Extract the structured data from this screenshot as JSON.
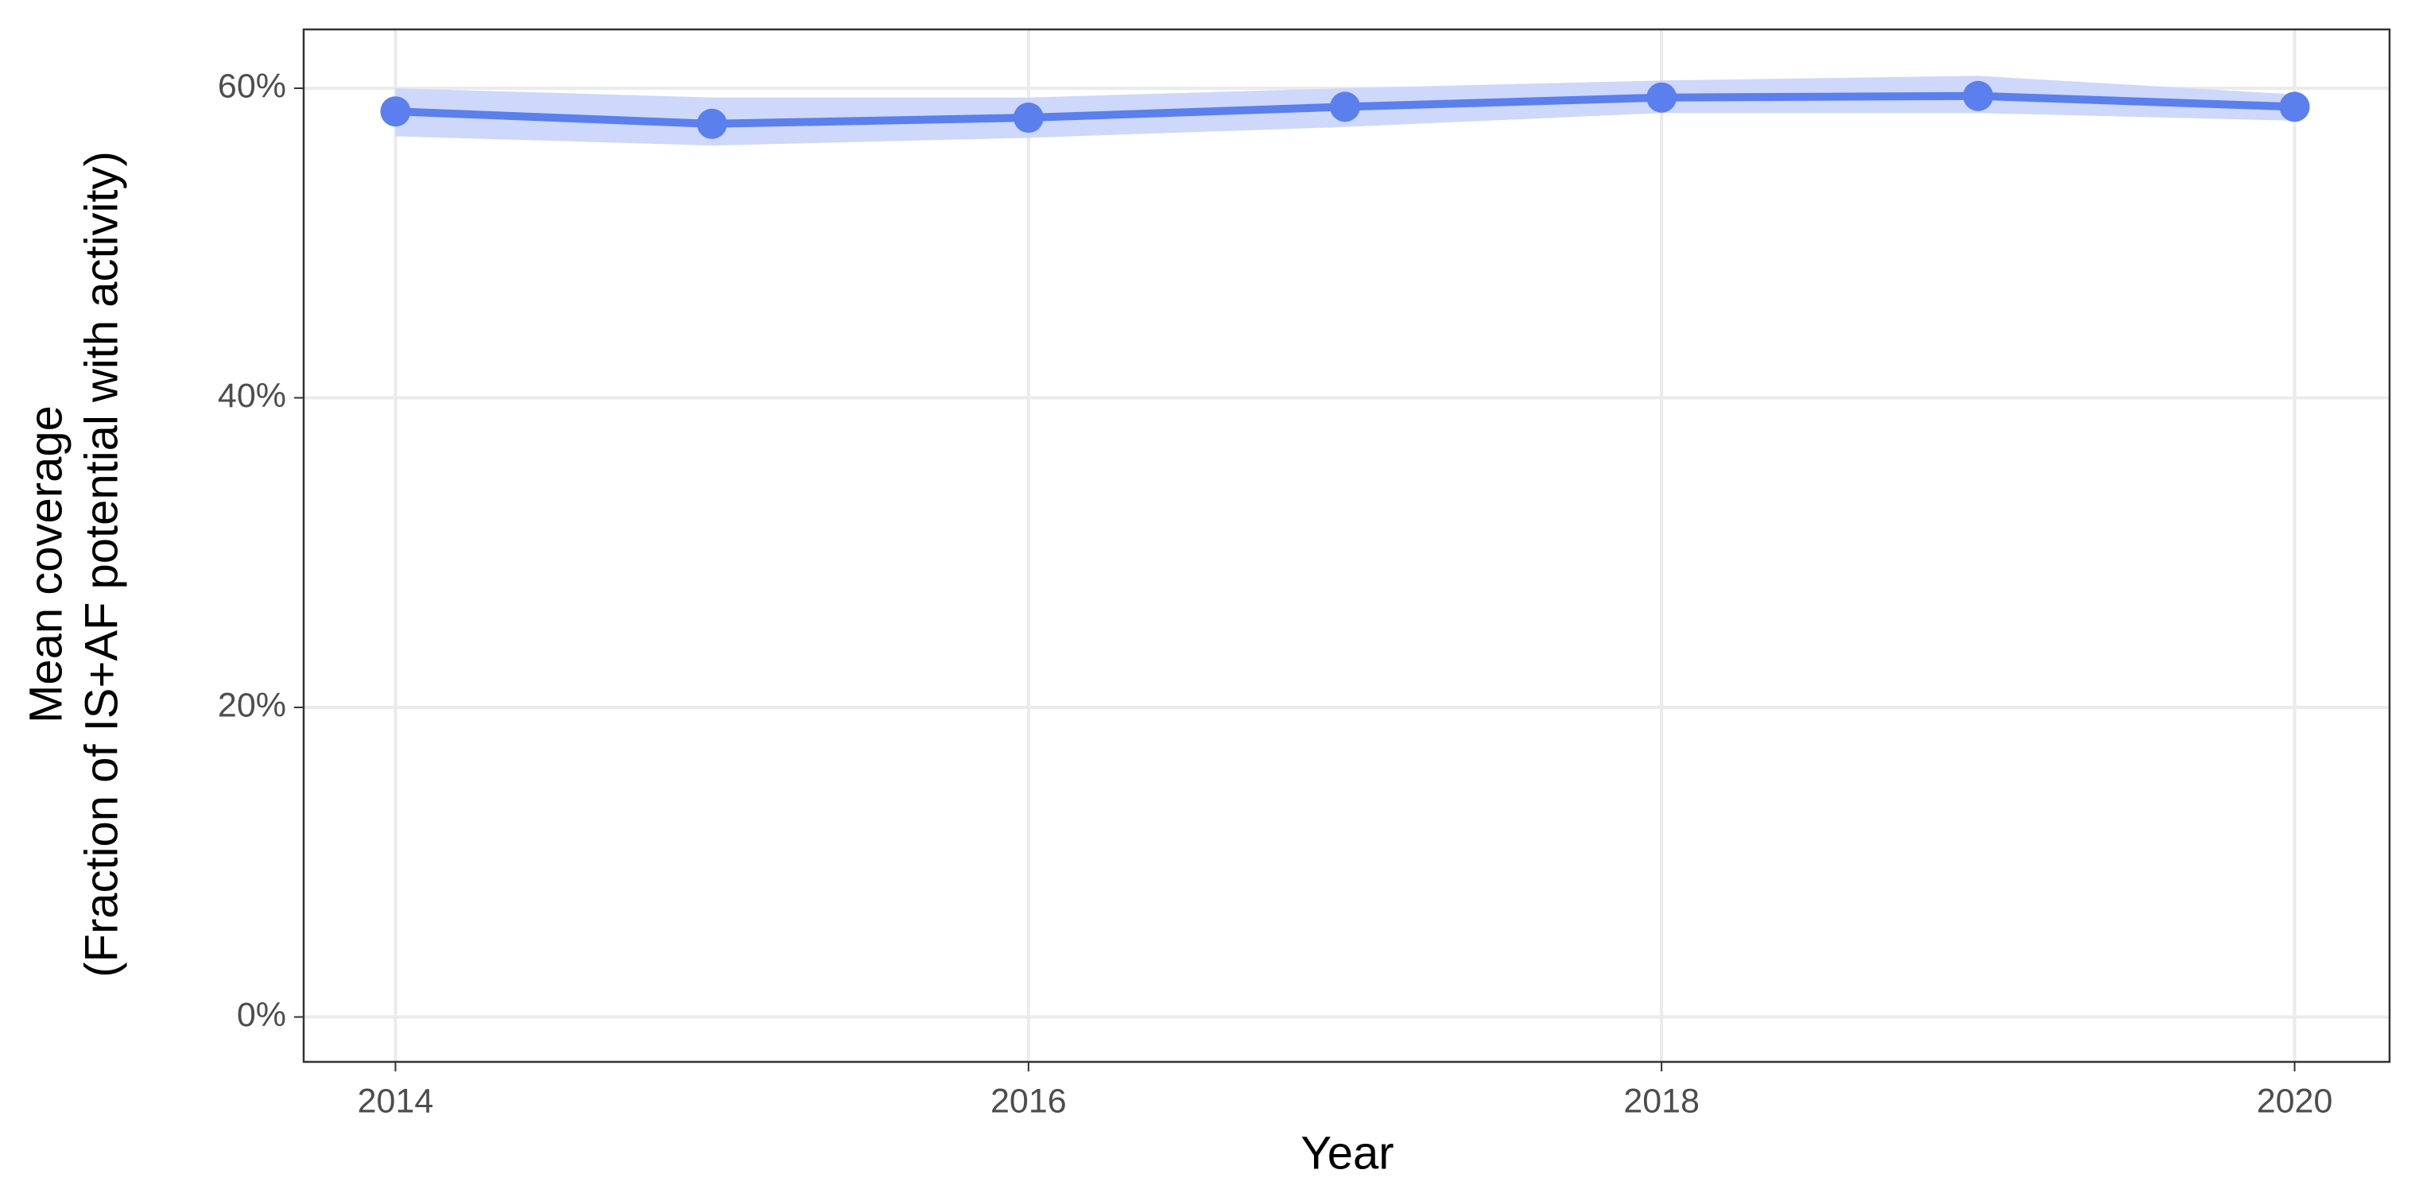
{
  "chart_data": {
    "type": "line",
    "x_label": "Year",
    "y_label": [
      "Mean coverage",
      "(Fraction of IS+AF potential with activity)"
    ],
    "x": [
      2014,
      2015,
      2016,
      2017,
      2018,
      2019,
      2020
    ],
    "series": [
      {
        "color": "#5b7fec",
        "band_color": "#cdd8fa",
        "values": [
          58.5,
          57.7,
          58.1,
          58.8,
          59.4,
          59.5,
          58.8
        ],
        "lower": [
          56.9,
          56.3,
          56.8,
          57.5,
          58.4,
          58.4,
          57.9
        ],
        "upper": [
          60.0,
          59.4,
          59.4,
          60.0,
          60.5,
          60.8,
          59.6
        ]
      }
    ],
    "xlim": [
      2013.71,
      2020.3
    ],
    "ylim": [
      -2.9,
      63.8
    ],
    "xticks": [
      2014,
      2016,
      2018,
      2020
    ],
    "yticks": [
      {
        "value": 0,
        "label": "0%"
      },
      {
        "value": 20,
        "label": "20%"
      },
      {
        "value": 40,
        "label": "40%"
      },
      {
        "value": 60,
        "label": "60%"
      }
    ],
    "grid": true
  }
}
